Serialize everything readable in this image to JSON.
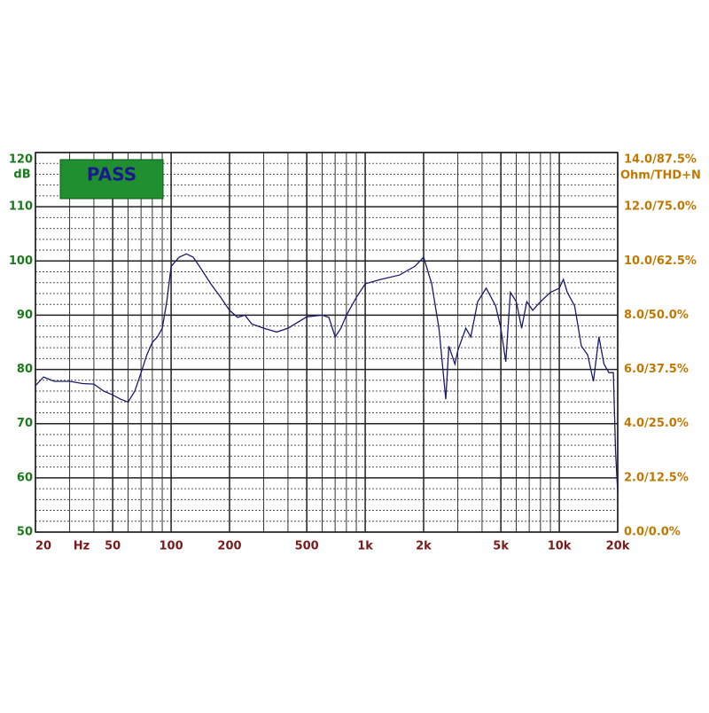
{
  "chart_data": {
    "type": "line",
    "badge": "PASS",
    "x_unit_label": "Hz",
    "y_unit_label": "dB",
    "y2_label": "Ohm/THD+N",
    "log_x": true,
    "grid": true,
    "xlim": [
      20,
      20000
    ],
    "xticks": [
      20,
      50,
      100,
      200,
      500,
      {
        "value": 1000,
        "label": "1k"
      },
      {
        "value": 2000,
        "label": "2k"
      },
      {
        "value": 5000,
        "label": "5k"
      },
      {
        "value": 10000,
        "label": "10k"
      },
      {
        "value": 20000,
        "label": "20k"
      }
    ],
    "ylim": [
      50,
      120
    ],
    "yticks": [
      50,
      60,
      70,
      80,
      90,
      100,
      110,
      120
    ],
    "y2lim": [
      0,
      14
    ],
    "y2ticks": [
      {
        "value": 0,
        "label": "0.0/0.0%"
      },
      {
        "value": 2,
        "label": "2.0/12.5%"
      },
      {
        "value": 4,
        "label": "4.0/25.0%"
      },
      {
        "value": 6,
        "label": "6.0/37.5%"
      },
      {
        "value": 8,
        "label": "8.0/50.0%"
      },
      {
        "value": 10,
        "label": "10.0/62.5%"
      },
      {
        "value": 12,
        "label": "12.0/75.0%"
      },
      {
        "value": 14,
        "label": "14.0/87.5%"
      }
    ],
    "x": [
      20,
      22,
      25,
      30,
      35,
      40,
      45,
      50,
      55,
      60,
      65,
      70,
      75,
      80,
      85,
      90,
      95,
      100,
      110,
      120,
      130,
      140,
      160,
      180,
      200,
      220,
      240,
      260,
      300,
      350,
      400,
      500,
      600,
      650,
      700,
      750,
      800,
      900,
      1000,
      1200,
      1500,
      1800,
      2000,
      2200,
      2400,
      2600,
      2700,
      2900,
      3000,
      3300,
      3500,
      3800,
      4200,
      4700,
      5000,
      5300,
      5600,
      6000,
      6400,
      6800,
      7300,
      8000,
      9000,
      10000,
      10500,
      11000,
      12000,
      13000,
      14000,
      15000,
      16000,
      17000,
      18000,
      19000,
      19500,
      20000
    ],
    "series": [
      {
        "color": "#1a1a6e",
        "values": [
          77,
          78.6,
          77.8,
          77.8,
          77.4,
          77.3,
          76,
          75.3,
          74.5,
          74,
          76,
          79.4,
          82.7,
          85,
          86,
          87.6,
          92.5,
          99,
          100.7,
          101.3,
          100.7,
          99,
          95.8,
          93.3,
          90.9,
          89.6,
          90,
          88.4,
          87.6,
          86.9,
          87.6,
          89.7,
          90,
          89.6,
          86,
          87.6,
          90,
          93.3,
          95.8,
          96.6,
          97.4,
          99,
          100.7,
          95.8,
          87.6,
          74.5,
          84.3,
          81,
          83.5,
          87.6,
          86,
          92.5,
          95,
          91.7,
          87.6,
          81.4,
          94.2,
          92.5,
          87.6,
          92.5,
          90.9,
          92.5,
          94.2,
          95,
          96.6,
          94.2,
          91.7,
          84.3,
          82.7,
          77.8,
          86,
          81,
          79.4,
          79.4,
          64.7,
          57.3
        ]
      }
    ]
  }
}
